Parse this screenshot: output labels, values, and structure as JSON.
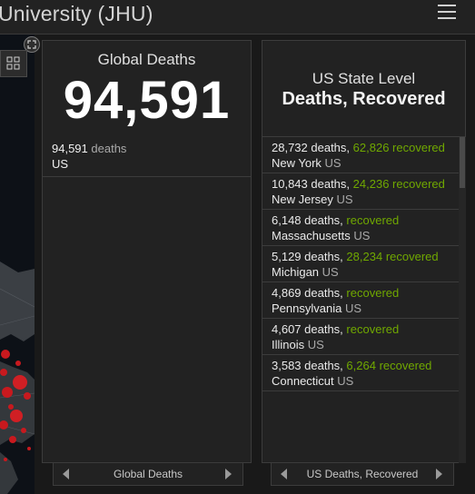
{
  "header": {
    "title": "University (JHU)"
  },
  "global_deaths": {
    "title": "Global Deaths",
    "total": "94,591",
    "rows": [
      {
        "number": "94,591",
        "unit": "deaths",
        "country": "US"
      }
    ],
    "footer_label": "Global Deaths"
  },
  "state_level": {
    "title_line1": "US State Level",
    "title_line2": "Deaths, Recovered",
    "items": [
      {
        "deaths": "28,732 deaths,",
        "recovered_num": "62,826",
        "recovered_word": "recovered",
        "state": "New York",
        "country": "US"
      },
      {
        "deaths": "10,843 deaths,",
        "recovered_num": "24,236",
        "recovered_word": "recovered",
        "state": "New Jersey",
        "country": "US"
      },
      {
        "deaths": "6,148 deaths,",
        "recovered_num": "",
        "recovered_word": "recovered",
        "state": "Massachusetts",
        "country": "US"
      },
      {
        "deaths": "5,129 deaths,",
        "recovered_num": "28,234",
        "recovered_word": "recovered",
        "state": "Michigan",
        "country": "US"
      },
      {
        "deaths": "4,869 deaths,",
        "recovered_num": "",
        "recovered_word": "recovered",
        "state": "Pennsylvania",
        "country": "US"
      },
      {
        "deaths": "4,607 deaths,",
        "recovered_num": "",
        "recovered_word": "recovered",
        "state": "Illinois",
        "country": "US"
      },
      {
        "deaths": "3,583 deaths,",
        "recovered_num": "6,264",
        "recovered_word": "recovered",
        "state": "Connecticut",
        "country": "US"
      }
    ],
    "footer_label": "US Deaths, Recovered"
  },
  "colors": {
    "background": "#191919",
    "panel": "#222222",
    "recovered": "#70a800",
    "map_marker": "#c8191e"
  },
  "icons": {
    "menu": "hamburger-menu-icon",
    "expand": "expand-icon",
    "grid": "grid-icon",
    "prev": "chevron-left-icon",
    "next": "chevron-right-icon"
  }
}
